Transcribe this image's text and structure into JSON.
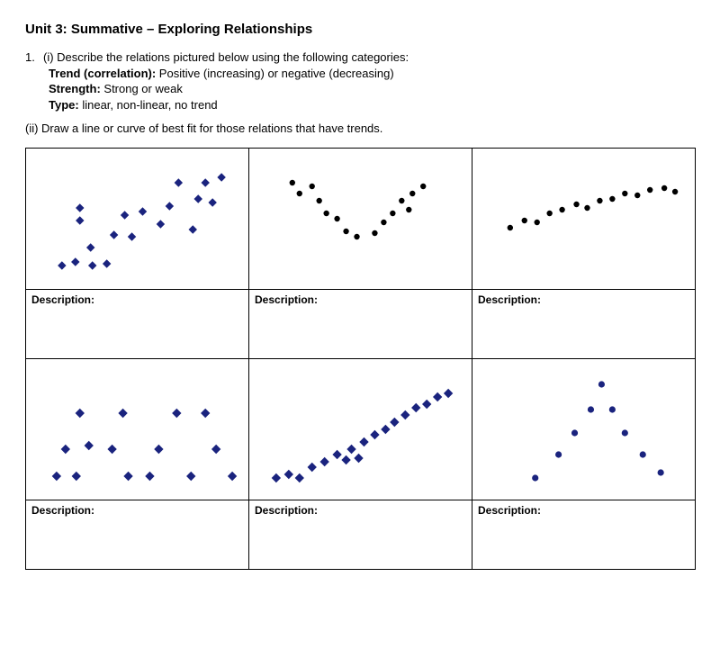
{
  "title": "Unit 3: Summative – Exploring Relationships",
  "question1": {
    "number": "1.",
    "part_i": "(i) Describe the relations pictured below using the following categories:",
    "trend_label": "Trend (correlation):",
    "trend_text": " Positive (increasing) or negative (decreasing)",
    "strength_label": "Strength:",
    "strength_text": " Strong or weak",
    "type_label": "Type:",
    "type_text": " linear, non-linear, no trend"
  },
  "question2": "(ii) Draw a line or curve of best fit for those relations that have trends.",
  "desc_label": "Description:",
  "charts": [
    {
      "type": "scatter",
      "marker": "diamond",
      "color": "#1a237e",
      "marker_size": 4.2,
      "background": "#ffffff",
      "xlim": [
        0,
        248
      ],
      "ylim": [
        0,
        156
      ],
      "points": [
        [
          40,
          130
        ],
        [
          55,
          126
        ],
        [
          74,
          130
        ],
        [
          90,
          128
        ],
        [
          72,
          110
        ],
        [
          98,
          96
        ],
        [
          118,
          98
        ],
        [
          60,
          80
        ],
        [
          110,
          74
        ],
        [
          130,
          70
        ],
        [
          150,
          84
        ],
        [
          160,
          64
        ],
        [
          186,
          90
        ],
        [
          192,
          56
        ],
        [
          60,
          66
        ],
        [
          170,
          38
        ],
        [
          200,
          38
        ],
        [
          208,
          60
        ],
        [
          218,
          32
        ]
      ]
    },
    {
      "type": "scatter",
      "marker": "circle",
      "color": "#000000",
      "marker_size": 3.2,
      "background": "#ffffff",
      "xlim": [
        0,
        248
      ],
      "ylim": [
        0,
        156
      ],
      "points": [
        [
          48,
          38
        ],
        [
          56,
          50
        ],
        [
          70,
          42
        ],
        [
          78,
          58
        ],
        [
          86,
          72
        ],
        [
          98,
          78
        ],
        [
          108,
          92
        ],
        [
          120,
          98
        ],
        [
          140,
          94
        ],
        [
          150,
          82
        ],
        [
          160,
          72
        ],
        [
          170,
          58
        ],
        [
          182,
          50
        ],
        [
          194,
          42
        ],
        [
          178,
          68
        ]
      ]
    },
    {
      "type": "scatter",
      "marker": "circle",
      "color": "#000000",
      "marker_size": 3.2,
      "background": "#ffffff",
      "xlim": [
        0,
        248
      ],
      "ylim": [
        0,
        156
      ],
      "points": [
        [
          42,
          88
        ],
        [
          58,
          80
        ],
        [
          72,
          82
        ],
        [
          86,
          72
        ],
        [
          100,
          68
        ],
        [
          116,
          62
        ],
        [
          128,
          66
        ],
        [
          142,
          58
        ],
        [
          156,
          56
        ],
        [
          170,
          50
        ],
        [
          184,
          52
        ],
        [
          198,
          46
        ],
        [
          214,
          44
        ],
        [
          226,
          48
        ]
      ]
    },
    {
      "type": "scatter",
      "marker": "diamond",
      "color": "#1a237e",
      "marker_size": 4.6,
      "background": "#ffffff",
      "xlim": [
        0,
        248
      ],
      "ylim": [
        0,
        156
      ],
      "points": [
        [
          34,
          130
        ],
        [
          56,
          130
        ],
        [
          44,
          100
        ],
        [
          70,
          96
        ],
        [
          96,
          100
        ],
        [
          114,
          130
        ],
        [
          60,
          60
        ],
        [
          108,
          60
        ],
        [
          148,
          100
        ],
        [
          168,
          60
        ],
        [
          138,
          130
        ],
        [
          184,
          130
        ],
        [
          212,
          100
        ],
        [
          230,
          130
        ],
        [
          200,
          60
        ]
      ]
    },
    {
      "type": "scatter",
      "marker": "diamond",
      "color": "#1a237e",
      "marker_size": 4.6,
      "background": "#ffffff",
      "xlim": [
        0,
        248
      ],
      "ylim": [
        0,
        156
      ],
      "points": [
        [
          30,
          132
        ],
        [
          44,
          128
        ],
        [
          56,
          132
        ],
        [
          70,
          120
        ],
        [
          84,
          114
        ],
        [
          98,
          106
        ],
        [
          108,
          112
        ],
        [
          114,
          100
        ],
        [
          122,
          110
        ],
        [
          128,
          92
        ],
        [
          140,
          84
        ],
        [
          152,
          78
        ],
        [
          162,
          70
        ],
        [
          174,
          62
        ],
        [
          186,
          54
        ],
        [
          198,
          50
        ],
        [
          210,
          42
        ],
        [
          222,
          38
        ]
      ]
    },
    {
      "type": "scatter",
      "marker": "circle",
      "color": "#1a237e",
      "marker_size": 3.6,
      "background": "#ffffff",
      "xlim": [
        0,
        248
      ],
      "ylim": [
        0,
        156
      ],
      "points": [
        [
          70,
          132
        ],
        [
          96,
          106
        ],
        [
          114,
          82
        ],
        [
          132,
          56
        ],
        [
          144,
          28
        ],
        [
          156,
          56
        ],
        [
          170,
          82
        ],
        [
          190,
          106
        ],
        [
          210,
          126
        ]
      ]
    }
  ]
}
